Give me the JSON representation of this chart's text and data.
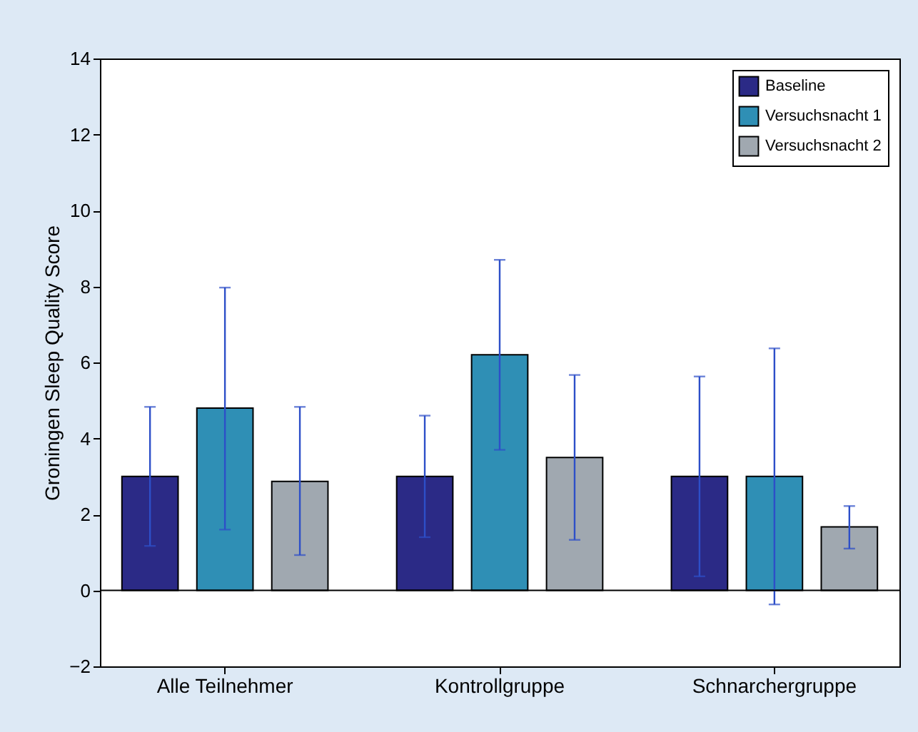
{
  "chart_data": {
    "type": "bar",
    "ylabel": "Groningen Sleep Quality Score",
    "categories": [
      "Alle Teilnehmer",
      "Kontrollgruppe",
      "Schnarchergruppe"
    ],
    "series": [
      {
        "name": "Baseline",
        "color": "#2b2a86",
        "values": [
          3,
          3,
          3
        ],
        "errors": [
          [
            1.17,
            4.83
          ],
          [
            1.4,
            4.6
          ],
          [
            0.37,
            5.63
          ]
        ]
      },
      {
        "name": "Versuchsnacht 1",
        "color": "#2f8fb5",
        "values": [
          4.8,
          6.2,
          3
        ],
        "errors": [
          [
            1.6,
            7.97
          ],
          [
            3.7,
            8.7
          ],
          [
            -0.37,
            6.37
          ]
        ]
      },
      {
        "name": "Versuchsnacht 2",
        "color": "#a0a8b0",
        "values": [
          2.87,
          3.5,
          1.67
        ],
        "errors": [
          [
            0.93,
            4.83
          ],
          [
            1.33,
            5.67
          ],
          [
            1.1,
            2.22
          ]
        ]
      }
    ],
    "ylim": [
      -2,
      14
    ],
    "yticks": [
      -2,
      0,
      2,
      4,
      6,
      8,
      10,
      12,
      14
    ],
    "ref_lines": [
      {
        "axis": "y",
        "value": 0,
        "color": "#000000"
      }
    ],
    "grid": false,
    "legend": "top right"
  }
}
